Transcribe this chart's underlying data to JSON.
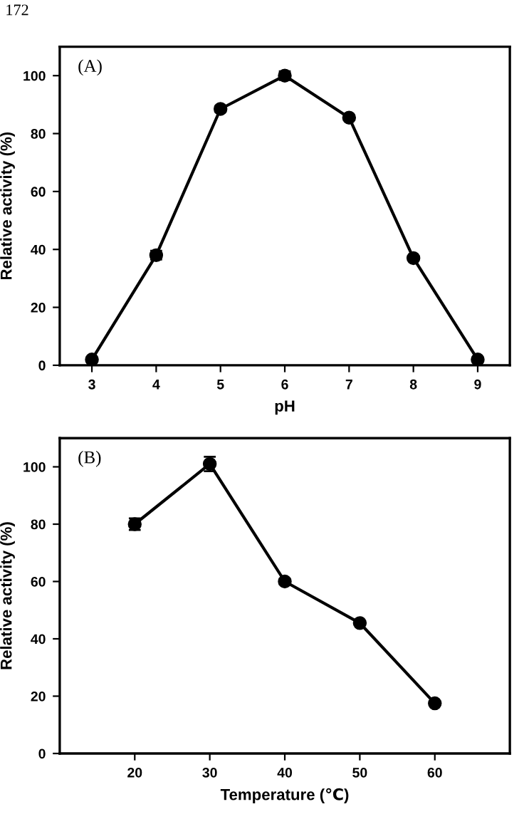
{
  "chart_data": [
    {
      "type": "line",
      "xlabel": "pH",
      "ylabel": "Relative activity (%)",
      "annotations": [
        "(A)",
        "172"
      ],
      "x": [
        3,
        4,
        5,
        6,
        7,
        8,
        9
      ],
      "series": [
        {
          "color": "#000000",
          "values": [
            2,
            38,
            88.5,
            100,
            85.5,
            37,
            2
          ],
          "errors": [
            null,
            1.5,
            1,
            1.5,
            null,
            null,
            null
          ]
        }
      ],
      "xlim": [
        2.5,
        9.5
      ],
      "ylim": [
        0,
        110
      ],
      "xticks": [
        3,
        4,
        5,
        6,
        7,
        8,
        9
      ],
      "yticks": [
        0,
        20,
        40,
        60,
        80,
        100
      ],
      "marker": "circle",
      "line_style": "solid",
      "grid": false,
      "legend": false
    },
    {
      "type": "line",
      "xlabel": "Temperature (℃)",
      "ylabel": "Relative activity (%)",
      "annotations": [
        "(B)"
      ],
      "x": [
        20,
        30,
        40,
        50,
        60
      ],
      "series": [
        {
          "color": "#000000",
          "values": [
            80,
            101,
            60,
            45.5,
            17.5
          ],
          "errors": [
            2,
            2.5,
            1,
            null,
            null
          ]
        }
      ],
      "xlim": [
        10,
        70
      ],
      "ylim": [
        0,
        110
      ],
      "xticks": [
        20,
        30,
        40,
        50,
        60
      ],
      "yticks": [
        0,
        20,
        40,
        60,
        80,
        100
      ],
      "marker": "circle",
      "line_style": "solid",
      "grid": false,
      "legend": false
    }
  ]
}
